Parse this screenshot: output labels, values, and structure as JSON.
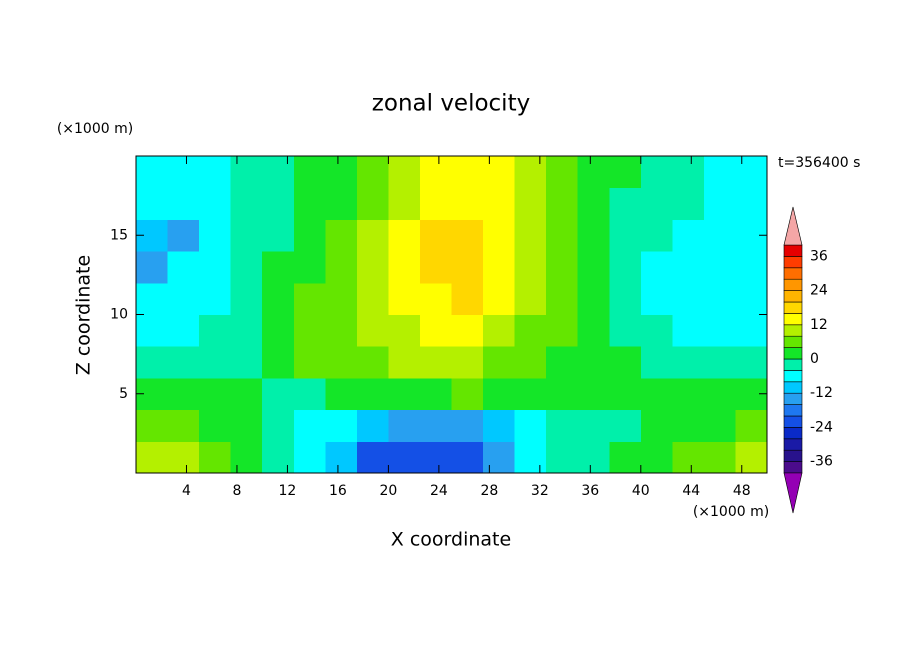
{
  "chart_data": {
    "type": "contour",
    "title": "zonal velocity",
    "x_label": "X coordinate",
    "y_label": "Z coordinate",
    "x_unit": "(×1000 m)",
    "y_unit": "(×1000 m)",
    "annotation": "t=356400 s",
    "xlim": [
      0,
      50
    ],
    "ylim": [
      0,
      20
    ],
    "xticks": [
      4,
      8,
      12,
      16,
      20,
      24,
      28,
      32,
      36,
      40,
      44,
      48
    ],
    "yticks": [
      5,
      10,
      15
    ],
    "x": [
      1.25,
      3.75,
      6.25,
      8.75,
      11.25,
      13.75,
      16.25,
      18.75,
      21.25,
      23.75,
      26.25,
      28.75,
      31.25,
      33.75,
      36.25,
      38.75,
      41.25,
      43.75,
      46.25,
      48.75
    ],
    "y": [
      1,
      3,
      5,
      7,
      9,
      11,
      13,
      15,
      17,
      19
    ],
    "z": [
      [
        10,
        10,
        6,
        2,
        -2,
        -6,
        -10,
        -22,
        -22,
        -22,
        -22,
        -14,
        -6,
        -2,
        -2,
        2,
        2,
        6,
        6,
        10
      ],
      [
        6,
        6,
        2,
        2,
        -2,
        -6,
        -6,
        -10,
        -14,
        -14,
        -14,
        -10,
        -6,
        -2,
        -2,
        -2,
        2,
        2,
        2,
        6
      ],
      [
        2,
        2,
        2,
        2,
        -2,
        -2,
        2,
        2,
        2,
        2,
        6,
        2,
        2,
        2,
        2,
        2,
        2,
        2,
        2,
        2
      ],
      [
        -2,
        -2,
        -2,
        -2,
        2,
        6,
        6,
        6,
        10,
        10,
        10,
        6,
        6,
        2,
        2,
        2,
        -2,
        -2,
        -2,
        -2
      ],
      [
        -6,
        -6,
        -2,
        -2,
        2,
        6,
        6,
        10,
        10,
        14,
        14,
        10,
        6,
        6,
        2,
        -2,
        -2,
        -6,
        -6,
        -6
      ],
      [
        -6,
        -6,
        -6,
        -2,
        2,
        6,
        6,
        10,
        14,
        14,
        18,
        14,
        10,
        6,
        2,
        -2,
        -6,
        -6,
        -6,
        -6
      ],
      [
        -14,
        -6,
        -6,
        -2,
        2,
        2,
        6,
        10,
        14,
        18,
        18,
        14,
        10,
        6,
        2,
        -2,
        -6,
        -6,
        -6,
        -6
      ],
      [
        -10,
        -14,
        -6,
        -2,
        -2,
        2,
        6,
        10,
        14,
        18,
        18,
        14,
        10,
        6,
        2,
        -2,
        -2,
        -6,
        -6,
        -6
      ],
      [
        -6,
        -6,
        -6,
        -2,
        -2,
        2,
        2,
        6,
        10,
        14,
        14,
        14,
        10,
        6,
        2,
        -2,
        -2,
        -2,
        -6,
        -6
      ],
      [
        -6,
        -6,
        -6,
        -2,
        -2,
        2,
        2,
        6,
        10,
        14,
        14,
        14,
        10,
        6,
        2,
        2,
        -2,
        -2,
        -6,
        -6
      ]
    ],
    "colorbar": {
      "levels": [
        -40,
        -36,
        -32,
        -28,
        -24,
        -20,
        -16,
        -12,
        -8,
        -4,
        0,
        4,
        8,
        12,
        16,
        20,
        24,
        28,
        32,
        36,
        40
      ],
      "colors": [
        "#4b0c8c",
        "#28128c",
        "#1a1aa6",
        "#0a2ac8",
        "#1450e6",
        "#1e78f0",
        "#28a0f0",
        "#00c8ff",
        "#00ffff",
        "#00f0aa",
        "#14e628",
        "#64e600",
        "#b4f000",
        "#ffff00",
        "#ffd700",
        "#ffb400",
        "#ff9600",
        "#ff6e00",
        "#ff3c00",
        "#e60000"
      ],
      "ticks": [
        -36,
        -24,
        -12,
        0,
        12,
        24,
        36
      ],
      "under_color": "#9400b4",
      "over_color": "#f4a6a6"
    }
  }
}
